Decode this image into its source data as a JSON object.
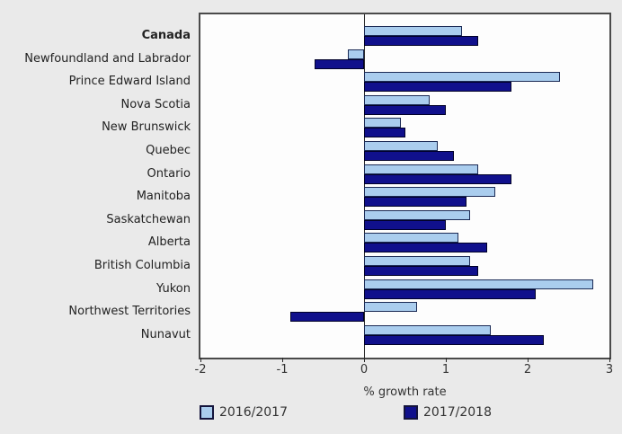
{
  "page": {
    "background": "#eaeaea"
  },
  "chart_data": {
    "type": "bar",
    "orientation": "horizontal",
    "title": "",
    "xlabel": "% growth rate",
    "ylabel": "",
    "xlim": [
      -2,
      3
    ],
    "xticks": [
      -2,
      -1,
      0,
      1,
      2,
      3
    ],
    "grid": false,
    "legend_position": "bottom",
    "emphasis_category": "Canada",
    "categories": [
      "Canada",
      "Newfoundland and Labrador",
      "Prince Edward Island",
      "Nova Scotia",
      "New Brunswick",
      "Quebec",
      "Ontario",
      "Manitoba",
      "Saskatchewan",
      "Alberta",
      "British Columbia",
      "Yukon",
      "Northwest Territories",
      "Nunavut"
    ],
    "series": [
      {
        "name": "2016/2017",
        "color": "#aacdee",
        "values": [
          1.2,
          -0.2,
          2.4,
          0.8,
          0.45,
          0.9,
          1.4,
          1.6,
          1.3,
          1.15,
          1.3,
          2.8,
          0.65,
          1.55
        ]
      },
      {
        "name": "2017/2018",
        "color": "#10108c",
        "values": [
          1.4,
          -0.6,
          1.8,
          1.0,
          0.5,
          1.1,
          1.8,
          1.25,
          1.0,
          1.5,
          1.4,
          2.1,
          -0.9,
          2.2
        ]
      }
    ]
  }
}
